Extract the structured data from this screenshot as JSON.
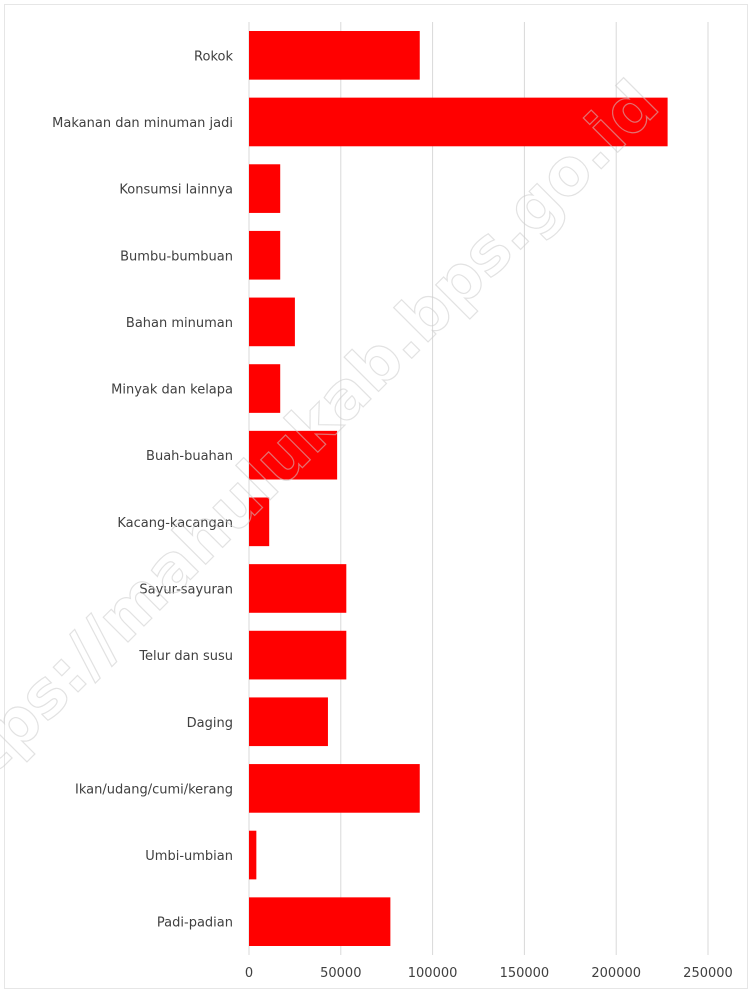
{
  "chart_data": {
    "type": "bar",
    "orientation": "horizontal",
    "categories": [
      "Rokok",
      "Makanan dan minuman jadi",
      "Konsumsi lainnya",
      "Bumbu-bumbuan",
      "Bahan minuman",
      "Minyak dan kelapa",
      "Buah-buahan",
      "Kacang-kacangan",
      "Sayur-sayuran",
      "Telur dan susu",
      "Daging",
      "Ikan/udang/cumi/kerang",
      "Umbi-umbian",
      "Padi-padian"
    ],
    "values": [
      93000,
      228000,
      17000,
      17000,
      25000,
      17000,
      48000,
      11000,
      53000,
      53000,
      43000,
      93000,
      4000,
      77000
    ],
    "xlim": [
      0,
      250000
    ],
    "xticks": [
      "0",
      "50000",
      "100000",
      "150000",
      "200000",
      "250000"
    ],
    "title": "",
    "xlabel": "",
    "ylabel": "",
    "grid": true,
    "legend": "none",
    "bar_color": "#ff0000"
  },
  "watermark": "https://mahulukab.bps.go.id"
}
